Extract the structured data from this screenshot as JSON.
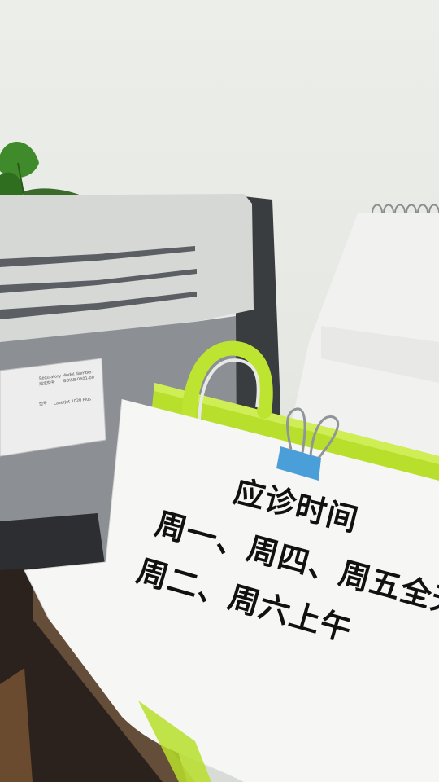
{
  "sign": {
    "title": "应诊时间",
    "line1": "周一、周四、周五全天",
    "line2": "周二、周六上午"
  },
  "printer_label": {
    "reg_en": "Regulatory Model Number:",
    "reg_cn": "规定型号",
    "reg_no": "BOISB-0601-00",
    "model_cn": "型号",
    "model_no": "LaserJet 1020 Plus"
  },
  "colors": {
    "wall": "#e9ebe8",
    "paper": "#f6f6f4",
    "holder": "#b9e02e",
    "clip": "#4a9fd8",
    "printer_top": "#d9dbd9",
    "printer_body": "#8e9296"
  }
}
